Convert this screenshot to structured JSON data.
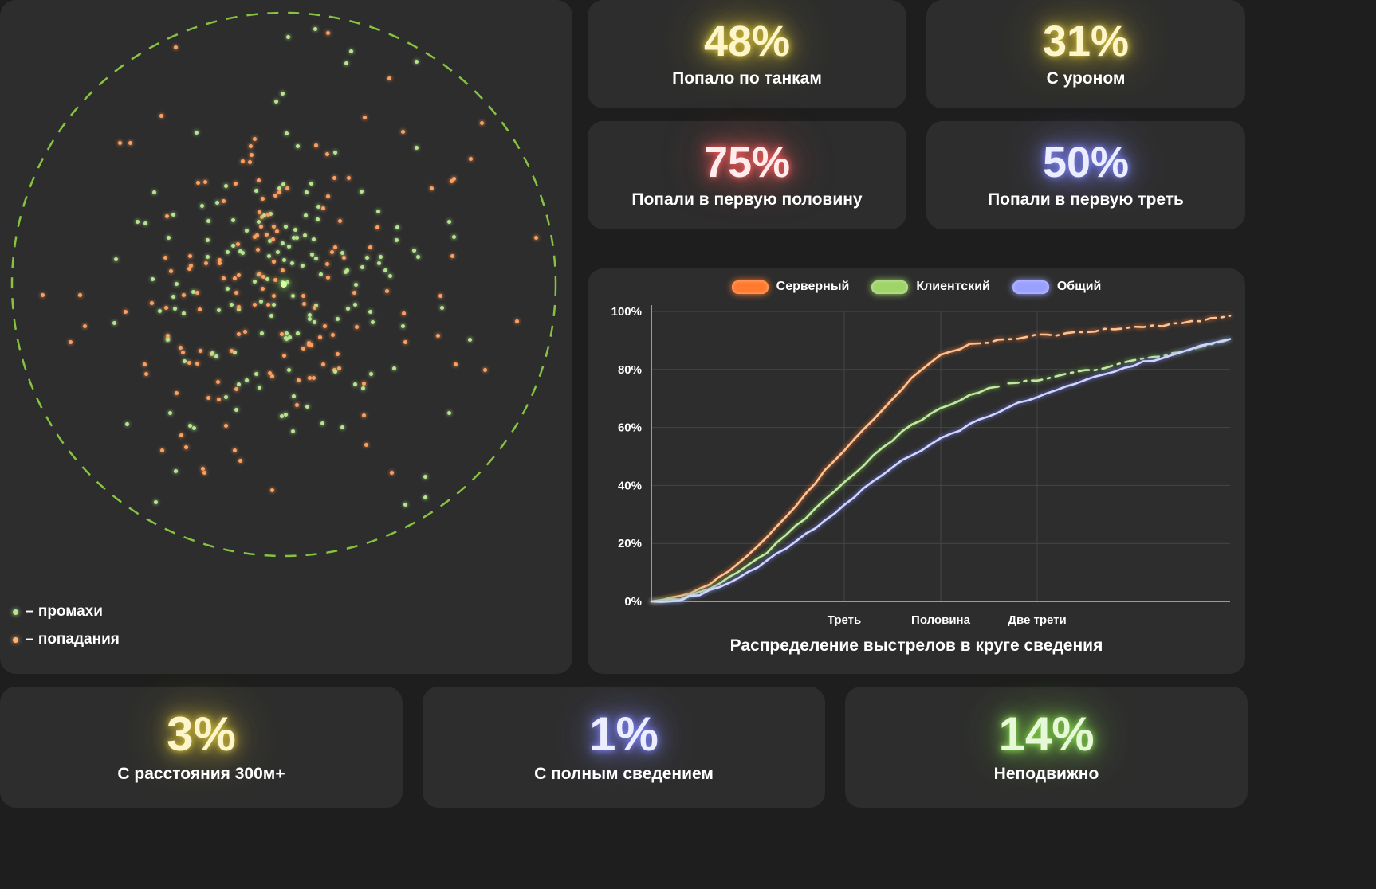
{
  "colors": {
    "page_bg": "#1e1e1e",
    "panel_bg": "#2d2d2d",
    "label_text": "#ffffff",
    "grid": "#464646",
    "axis": "#9a9a9a"
  },
  "scatter": {
    "legend": [
      {
        "label": "– промахи",
        "color": "#b5e68f"
      },
      {
        "label": "– попадания",
        "color": "#ffb36b"
      }
    ],
    "circle_color": "#86c440",
    "miss_color": "#b5e68f",
    "hit_color": "#ff9f5f",
    "center_color": "#d8ffa6",
    "center_glow": "#8fe14e",
    "seed": 987654321,
    "hits": 150,
    "misses": 150
  },
  "stats_top": [
    {
      "value": "48%",
      "label": "Попало по танкам",
      "color": "#fdf6cd",
      "glow": "#d8c23a"
    },
    {
      "value": "31%",
      "label": "С уроном",
      "color": "#fdf6cd",
      "glow": "#d8c23a"
    },
    {
      "value": "75%",
      "label": "Попали в первую половину",
      "color": "#ffecec",
      "glow": "#ff5f5f"
    },
    {
      "value": "50%",
      "label": "Попали в первую треть",
      "color": "#eceeff",
      "glow": "#8087ff"
    }
  ],
  "stats_bottom": [
    {
      "value": "3%",
      "label": "С расстояния 300м+",
      "color": "#fdf6cd",
      "glow": "#d8c23a"
    },
    {
      "value": "1%",
      "label": "С полным сведением",
      "color": "#eceeff",
      "glow": "#8087ff"
    },
    {
      "value": "14%",
      "label": "Неподвижно",
      "color": "#e7f8d8",
      "glow": "#86d94e"
    }
  ],
  "chart_data": {
    "type": "line",
    "title": "Распределение выстрелов в круге сведения",
    "xlabel": "",
    "ylabel": "",
    "xlim": [
      0,
      1
    ],
    "ylim": [
      0,
      100
    ],
    "grid": true,
    "legend_position": "top",
    "y_ticks": [
      0,
      20,
      40,
      60,
      80,
      100
    ],
    "x_ticks": [
      {
        "pos": 0.3333,
        "label": "Треть"
      },
      {
        "pos": 0.5,
        "label": "Половина"
      },
      {
        "pos": 0.6667,
        "label": "Две трети"
      }
    ],
    "x": [
      0,
      0.05,
      0.1,
      0.15,
      0.2,
      0.25,
      0.3,
      0.35,
      0.4,
      0.45,
      0.5,
      0.55,
      0.6,
      0.65,
      0.7,
      0.75,
      0.8,
      0.85,
      0.9,
      0.95,
      1
    ],
    "series": [
      {
        "key": "server",
        "name": "Серверный",
        "chip": "#ff7a2e",
        "line": "#ffc393",
        "glow": "#ff7a2e",
        "dash_from": 0.55,
        "values": [
          0,
          1.5,
          6,
          13,
          22,
          33,
          45,
          56,
          66,
          77,
          85,
          88.5,
          90,
          91.5,
          92,
          93,
          94,
          94.5,
          95.5,
          97,
          98.5
        ]
      },
      {
        "key": "client",
        "name": "Клиентский",
        "chip": "#9fd468",
        "line": "#c3e8a6",
        "glow": "#76c043",
        "dash_from": 0.61,
        "values": [
          0,
          1,
          4.5,
          10,
          17,
          26,
          35,
          44,
          53,
          61,
          66.5,
          71,
          74.5,
          76,
          77.5,
          79.5,
          81.5,
          83.5,
          85.5,
          88,
          90.5
        ]
      },
      {
        "key": "overall",
        "name": "Общий",
        "chip": "#9aa0ff",
        "line": "#d0d5ff",
        "glow": "#7b82ff",
        "dash_from": null,
        "values": [
          0,
          0.5,
          3.5,
          8,
          14,
          21,
          28,
          36,
          44,
          50.5,
          56,
          61,
          65.5,
          69.5,
          73,
          76.5,
          79.5,
          82.5,
          85,
          88,
          90.5
        ]
      }
    ]
  }
}
